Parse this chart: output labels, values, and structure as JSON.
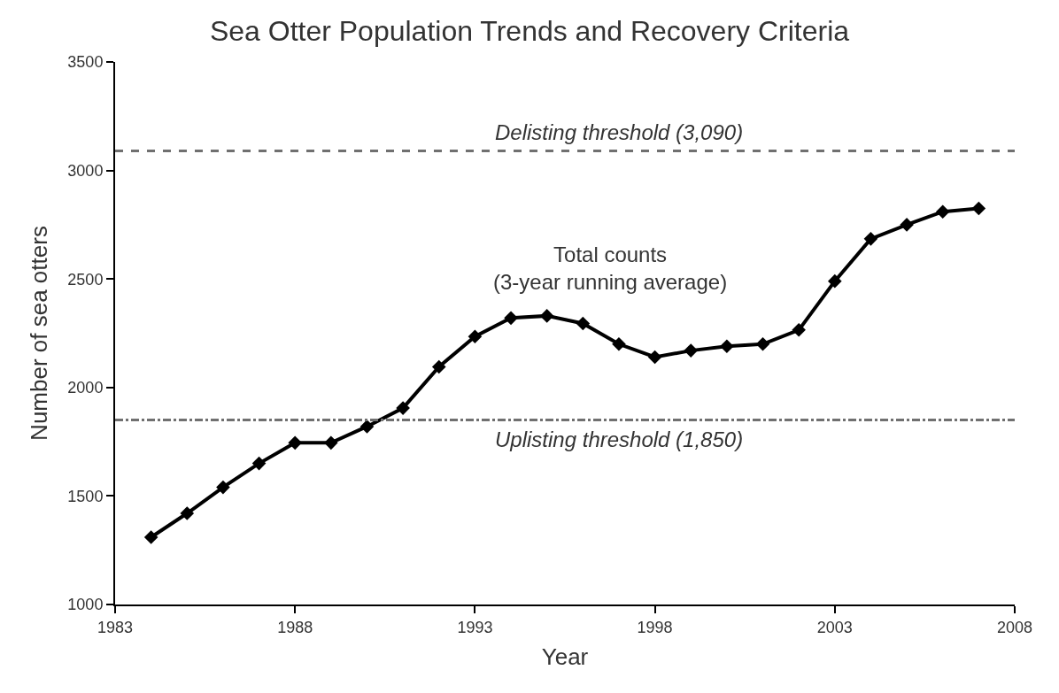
{
  "chart_data": {
    "type": "line",
    "title": "Sea Otter Population Trends and Recovery Criteria",
    "xlabel": "Year",
    "ylabel": "Number of sea otters",
    "x": [
      1984,
      1985,
      1986,
      1987,
      1988,
      1989,
      1990,
      1991,
      1992,
      1993,
      1994,
      1995,
      1996,
      1997,
      1998,
      1999,
      2000,
      2001,
      2002,
      2003,
      2004,
      2005,
      2006,
      2007
    ],
    "series": [
      {
        "color": "#000000",
        "values": [
          1310,
          1420,
          1540,
          1650,
          1745,
          1745,
          1820,
          1905,
          2095,
          2235,
          2320,
          2330,
          2295,
          2200,
          2140,
          2170,
          2190,
          2200,
          2265,
          2490,
          2685,
          2750,
          2810,
          2825
        ]
      }
    ],
    "xlim": [
      1983,
      2008
    ],
    "xticks": [
      1983,
      1988,
      1993,
      1998,
      2003,
      2008
    ],
    "ylim": [
      1000,
      3500
    ],
    "yticks": [
      1000,
      1500,
      2000,
      2500,
      3000,
      3500
    ],
    "ref_lines": [
      {
        "axis": "y",
        "value": 3090,
        "label": "Delisting threshold (3,090)",
        "color": "#707070",
        "line_style": "dashed"
      },
      {
        "axis": "y",
        "value": 1850,
        "label": "Uplisting threshold (1,850)",
        "color": "#707070",
        "line_style": "dashdot"
      }
    ],
    "annotations": [
      "Total counts\n(3-year running average)"
    ],
    "marker": "diamond",
    "line_style": "solid"
  }
}
